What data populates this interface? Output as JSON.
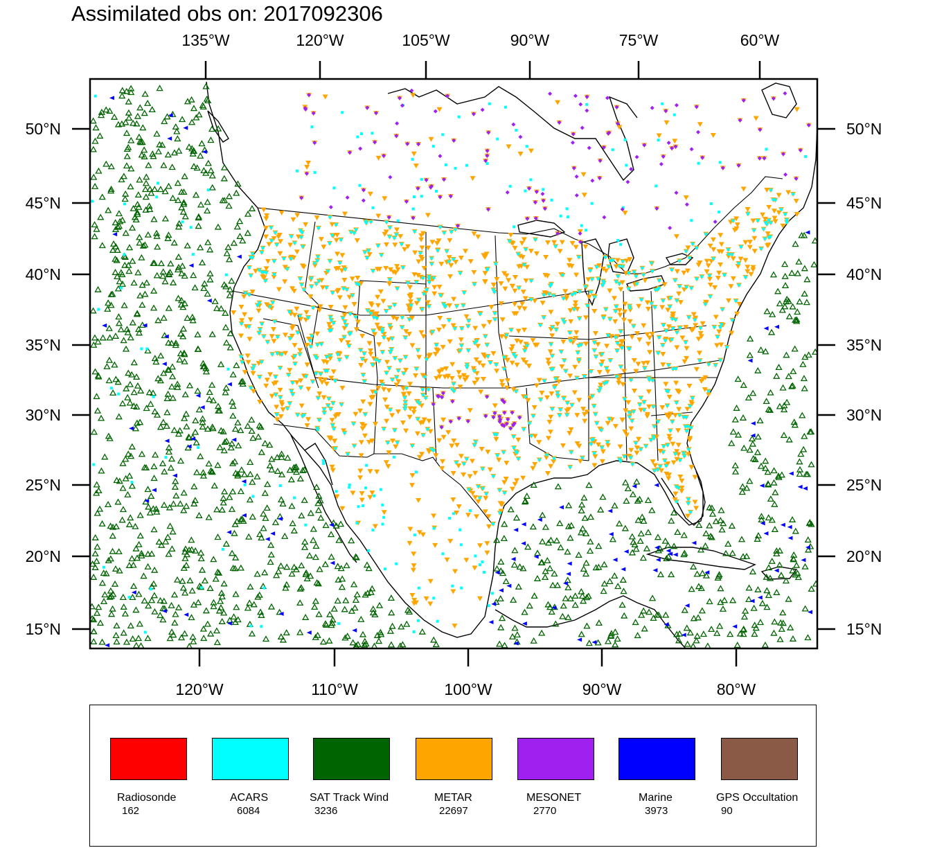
{
  "title": "Assimilated obs on: 2017092306",
  "map": {
    "top_axis_labels": [
      "135°W",
      "120°W",
      "105°W",
      "90°W",
      "75°W",
      "60°W"
    ],
    "bottom_axis_labels": [
      "120°W",
      "110°W",
      "100°W",
      "90°W",
      "80°W"
    ],
    "lat_labels": [
      "50°N",
      "45°N",
      "40°N",
      "35°N",
      "30°N",
      "25°N",
      "20°N",
      "15°N"
    ]
  },
  "legend": [
    {
      "name": "Radiosonde",
      "count": "162",
      "color": "#ff0000"
    },
    {
      "name": "ACARS",
      "count": "6084",
      "color": "#00ffff"
    },
    {
      "name": "SAT Track Wind",
      "count": "3236",
      "color": "#006400"
    },
    {
      "name": "METAR",
      "count": "22697",
      "color": "#ffa500"
    },
    {
      "name": "MESONET",
      "count": "2770",
      "color": "#a020f0"
    },
    {
      "name": "Marine",
      "count": "3973",
      "color": "#0000ff"
    },
    {
      "name": "GPS Occultation",
      "count": "90",
      "color": "#8b5a46"
    }
  ]
}
